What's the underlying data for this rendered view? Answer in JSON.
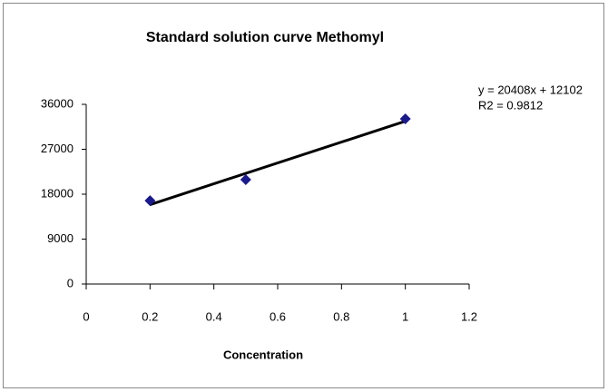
{
  "chart_data": {
    "type": "scatter",
    "title": "Standard solution curve Methomyl",
    "x_label": "Concentration",
    "annotations": [
      "y = 20408x + 12102",
      "R2 = 0.9812"
    ],
    "x": [
      0.2,
      0.5,
      1
    ],
    "series": [
      {
        "color": "#1a1a8c",
        "values": [
          16700,
          20900,
          33100
        ]
      }
    ],
    "trendline_color": "#000000",
    "xlim": [
      0,
      1.2
    ],
    "xticks": [
      0,
      0.2,
      0.4,
      0.6,
      0.8,
      1,
      1.2
    ],
    "ylim": [
      0,
      36000
    ],
    "yticks": [
      0,
      9000,
      18000,
      27000,
      36000
    ]
  }
}
